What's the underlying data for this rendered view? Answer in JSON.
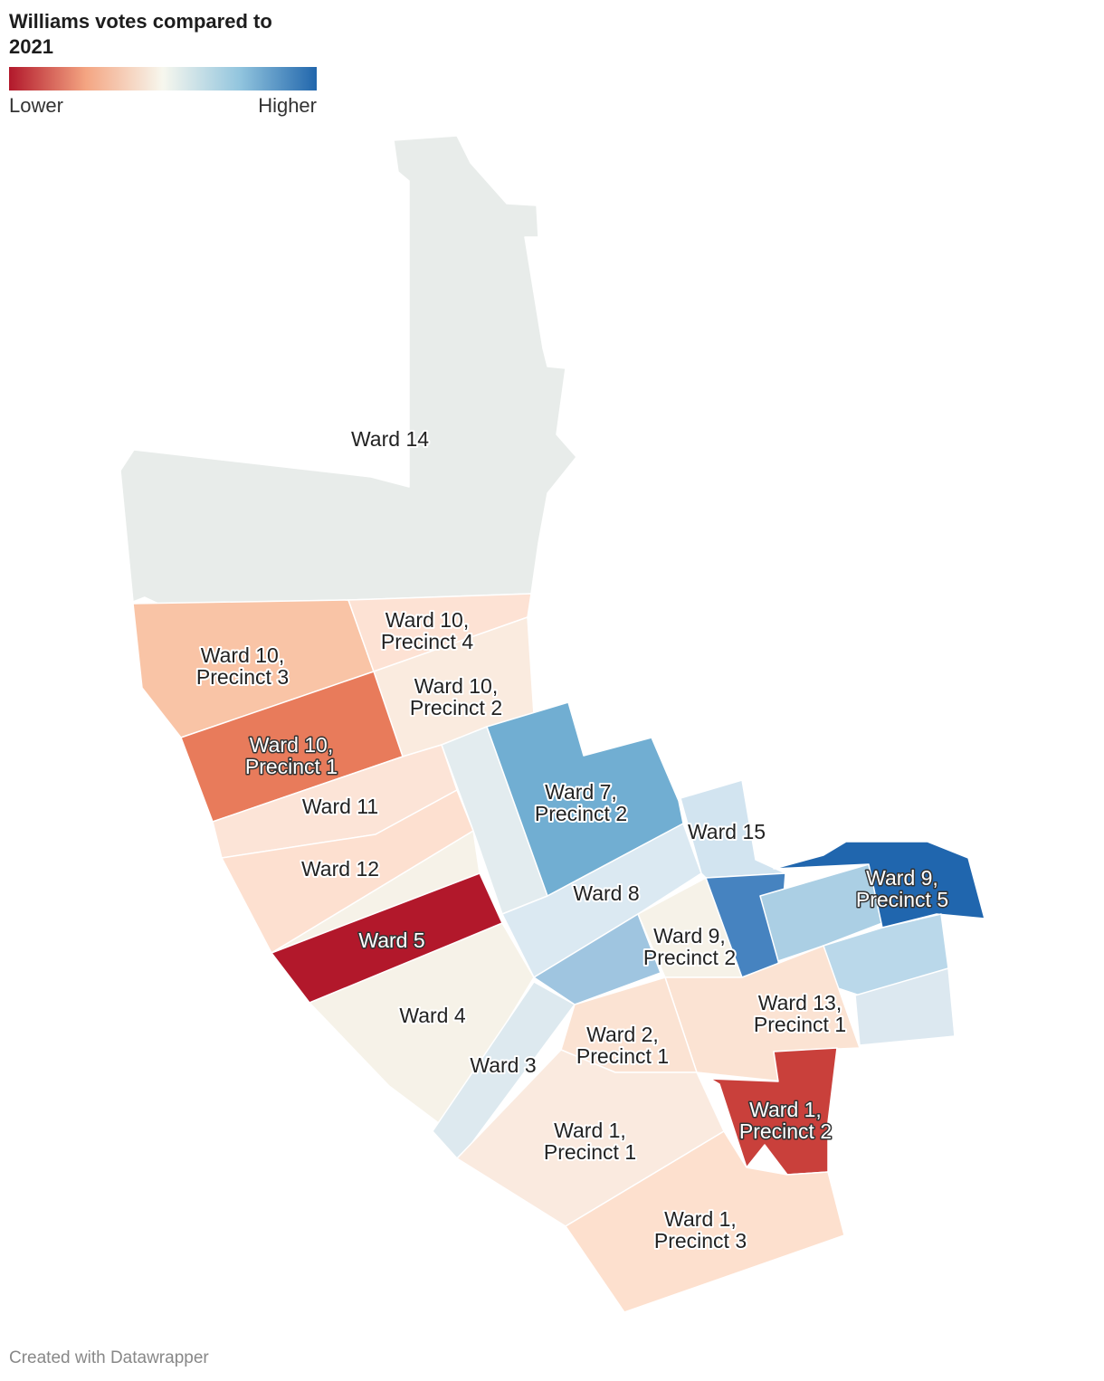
{
  "title": "Williams votes compared to 2021",
  "legend": {
    "low_label": "Lower",
    "high_label": "Higher",
    "colors": [
      "#b2182b",
      "#f4a582",
      "#f7f7ee",
      "#92c5de",
      "#2166ac"
    ]
  },
  "regions": [
    {
      "label_lines": [
        "Ward 14"
      ],
      "color": "#e8ecea"
    },
    {
      "label_lines": [
        "Ward 10,",
        "Precinct 3"
      ],
      "color": "#f9c4a6"
    },
    {
      "label_lines": [
        "Ward 10,",
        "Precinct 4"
      ],
      "color": "#fde2d4"
    },
    {
      "label_lines": [
        "Ward 10,",
        "Precinct 2"
      ],
      "color": "#faebdf"
    },
    {
      "label_lines": [
        "Ward 10,",
        "Precinct 1"
      ],
      "color": "#e87b5b"
    },
    {
      "label_lines": [
        "Ward 11"
      ],
      "color": "#fce4d7"
    },
    {
      "label_lines": [
        "Ward 12"
      ],
      "color": "#fde0d0"
    },
    {
      "label_lines": [
        "Ward 5"
      ],
      "color": "#b2182b"
    },
    {
      "label_lines": [
        "Ward 4"
      ],
      "color": "#f6f2e8"
    },
    {
      "color": "#e3ecef"
    },
    {
      "label_lines": [
        "Ward 7,",
        "Precinct 2"
      ],
      "color": "#71aed2"
    },
    {
      "label_lines": [
        "Ward 8"
      ],
      "color": "#dbe9f2"
    },
    {
      "label_lines": [
        "Ward 15"
      ],
      "color": "#d2e4f0"
    },
    {
      "label_lines": [
        "Ward 9,",
        "Precinct 2"
      ],
      "color": "#f6f2e8"
    },
    {
      "color": "#9fc5e0"
    },
    {
      "color": "#4683c0"
    },
    {
      "color": "#abcfe4"
    },
    {
      "label_lines": [
        "Ward 9,",
        "Precinct 5"
      ],
      "color": "#2066ae"
    },
    {
      "color": "#bad8ea"
    },
    {
      "color": "#dce8f0"
    },
    {
      "label_lines": [
        "Ward 13,",
        "Precinct 1"
      ],
      "color": "#fbe3d3"
    },
    {
      "label_lines": [
        "Ward 3"
      ],
      "color": "#dde9ef"
    },
    {
      "label_lines": [
        "Ward 2,",
        "Precinct 1"
      ],
      "color": "#fbe3d3"
    },
    {
      "label_lines": [
        "Ward 1,",
        "Precinct 1"
      ],
      "color": "#faeadf"
    },
    {
      "label_lines": [
        "Ward 1,",
        "Precinct 2"
      ],
      "color": "#c9403b"
    },
    {
      "label_lines": [
        "Ward 1,",
        "Precinct 3"
      ],
      "color": "#fde0ce"
    }
  ],
  "footer": "Created with Datawrapper"
}
